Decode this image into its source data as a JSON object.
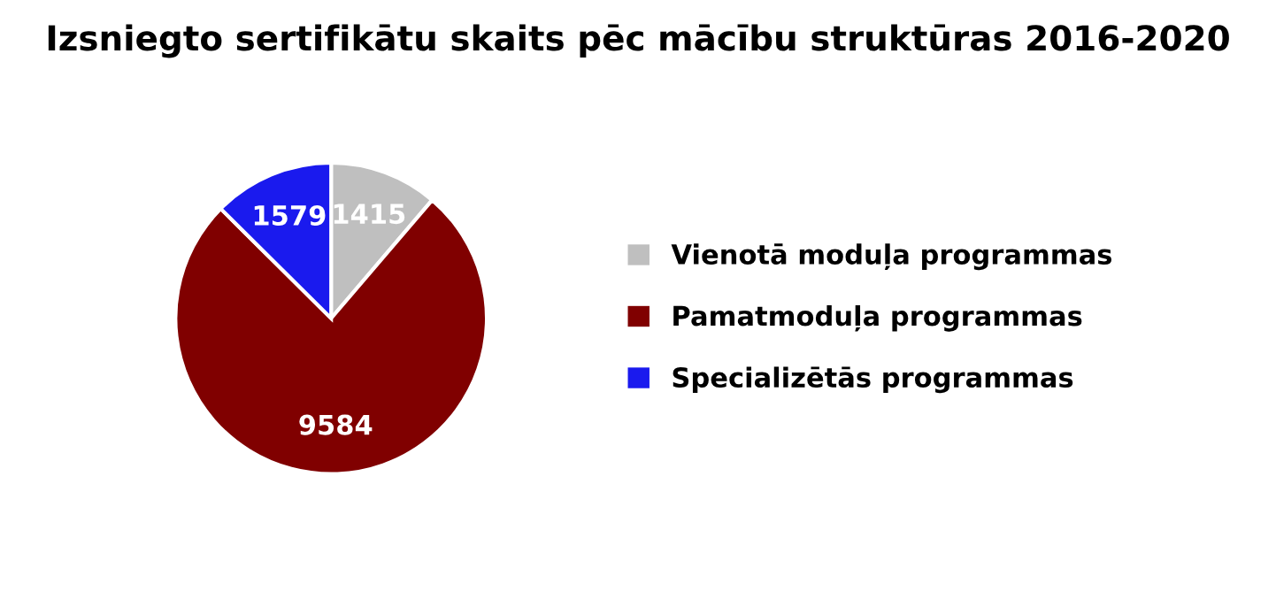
{
  "chart_data": {
    "type": "pie",
    "title": "Izsniegto sertifikātu skaits pēc mācību struktūras 2016-2020",
    "categories": [
      "Vienotā moduļa programmas",
      "Pamatmoduļa programmas",
      "Specializētās programmas"
    ],
    "values": [
      1415,
      9584,
      1579
    ],
    "colors": [
      "#bfbfbf",
      "#800000",
      "#1a1aee"
    ],
    "data_labels": true,
    "legend": "right"
  }
}
